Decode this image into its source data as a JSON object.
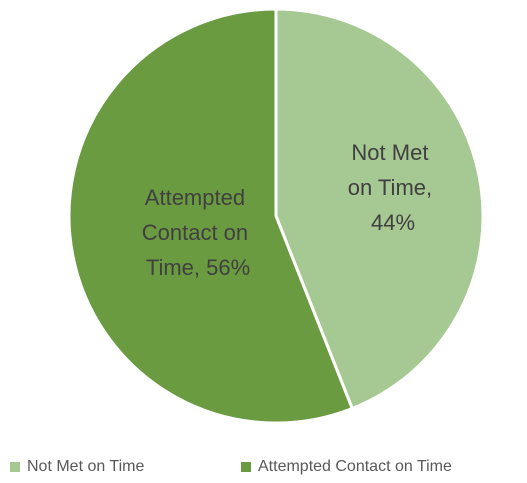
{
  "chart_data": {
    "type": "pie",
    "categories": [
      "Not Met on Time",
      "Attempted Contact on Time"
    ],
    "values": [
      44,
      56
    ],
    "value_labels": [
      "Not Met on Time, 44%",
      "Attempted Contact on Time, 56%"
    ],
    "colors": [
      "#a6c892",
      "#6b9b40"
    ],
    "legend": "bottom"
  }
}
